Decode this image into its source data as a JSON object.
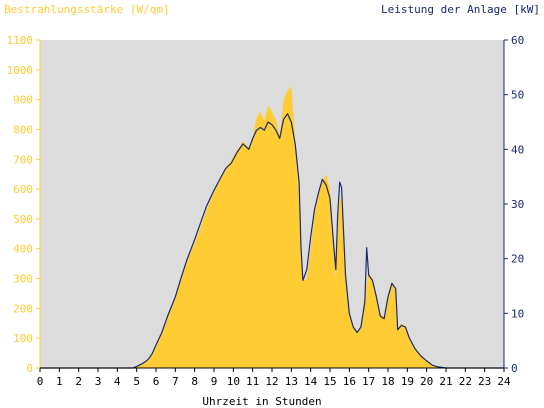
{
  "chart_data": {
    "type": "area",
    "left_title": "Bestrahlungsstärke [W/qm]",
    "right_title": "Leistung der Anlage [kW]",
    "xlabel": "Uhrzeit in Stunden",
    "xlim": [
      0,
      24
    ],
    "ylim_left": [
      0,
      1100
    ],
    "ylim_right": [
      0,
      60
    ],
    "x_ticks": [
      "0",
      "1",
      "2",
      "3",
      "4",
      "5",
      "6",
      "7",
      "8",
      "9",
      "10",
      "11",
      "12",
      "13",
      "14",
      "15",
      "16",
      "17",
      "18",
      "19",
      "20",
      "21",
      "22",
      "23",
      "24"
    ],
    "y_left_ticks": [
      "0",
      "100",
      "200",
      "300",
      "400",
      "500",
      "600",
      "700",
      "800",
      "900",
      "1000",
      "1100"
    ],
    "y_right_ticks": [
      "0",
      "10",
      "20",
      "30",
      "40",
      "50",
      "60"
    ],
    "colors": {
      "plot_background": "#dcdcdc",
      "irradiance_fill": "#ffcc33",
      "power_line": "#1a2a6c",
      "left_axis_text": "#ffcc33",
      "right_axis_text": "#1a2a6c",
      "x_axis_text": "#000000"
    },
    "series": [
      {
        "name": "Bestrahlungsstärke",
        "axis": "left",
        "style": "area",
        "points": [
          [
            0,
            0
          ],
          [
            4.8,
            0
          ],
          [
            5.0,
            5
          ],
          [
            5.3,
            12
          ],
          [
            5.6,
            28
          ],
          [
            5.8,
            45
          ],
          [
            6.0,
            75
          ],
          [
            6.3,
            120
          ],
          [
            6.6,
            180
          ],
          [
            7.0,
            240
          ],
          [
            7.3,
            300
          ],
          [
            7.6,
            360
          ],
          [
            8.0,
            420
          ],
          [
            8.3,
            470
          ],
          [
            8.6,
            530
          ],
          [
            9.0,
            590
          ],
          [
            9.3,
            630
          ],
          [
            9.6,
            670
          ],
          [
            9.9,
            700
          ],
          [
            10.2,
            730
          ],
          [
            10.5,
            760
          ],
          [
            10.8,
            740
          ],
          [
            11.0,
            770
          ],
          [
            11.2,
            840
          ],
          [
            11.4,
            860
          ],
          [
            11.6,
            830
          ],
          [
            11.8,
            880
          ],
          [
            12.0,
            860
          ],
          [
            12.2,
            830
          ],
          [
            12.4,
            780
          ],
          [
            12.6,
            900
          ],
          [
            12.8,
            930
          ],
          [
            13.0,
            945
          ],
          [
            13.2,
            760
          ],
          [
            13.4,
            620
          ],
          [
            13.5,
            400
          ],
          [
            13.6,
            290
          ],
          [
            13.8,
            300
          ],
          [
            14.0,
            400
          ],
          [
            14.2,
            520
          ],
          [
            14.4,
            580
          ],
          [
            14.6,
            630
          ],
          [
            14.8,
            650
          ],
          [
            15.0,
            600
          ],
          [
            15.2,
            400
          ],
          [
            15.3,
            300
          ],
          [
            15.4,
            500
          ],
          [
            15.5,
            560
          ],
          [
            15.6,
            580
          ],
          [
            15.8,
            300
          ],
          [
            16.0,
            180
          ],
          [
            16.2,
            140
          ],
          [
            16.4,
            120
          ],
          [
            16.6,
            140
          ],
          [
            16.8,
            250
          ],
          [
            17.0,
            320
          ],
          [
            17.2,
            300
          ],
          [
            17.4,
            240
          ],
          [
            17.6,
            180
          ],
          [
            17.8,
            170
          ],
          [
            18.0,
            230
          ],
          [
            18.2,
            290
          ],
          [
            18.4,
            270
          ],
          [
            18.5,
            130
          ],
          [
            18.7,
            150
          ],
          [
            18.9,
            140
          ],
          [
            19.1,
            100
          ],
          [
            19.4,
            60
          ],
          [
            19.7,
            40
          ],
          [
            20.0,
            25
          ],
          [
            20.3,
            10
          ],
          [
            20.6,
            3
          ],
          [
            21.0,
            0
          ],
          [
            24,
            0
          ]
        ]
      },
      {
        "name": "Leistung",
        "axis": "right",
        "style": "line",
        "points": [
          [
            0,
            0
          ],
          [
            4.8,
            0
          ],
          [
            5.0,
            0.3
          ],
          [
            5.3,
            0.8
          ],
          [
            5.6,
            1.6
          ],
          [
            5.8,
            2.6
          ],
          [
            6.0,
            4.2
          ],
          [
            6.3,
            6.5
          ],
          [
            6.6,
            9.5
          ],
          [
            7.0,
            13
          ],
          [
            7.3,
            16.5
          ],
          [
            7.6,
            19.8
          ],
          [
            8.0,
            23.5
          ],
          [
            8.3,
            26.5
          ],
          [
            8.6,
            29.5
          ],
          [
            9.0,
            32.5
          ],
          [
            9.3,
            34.5
          ],
          [
            9.6,
            36.5
          ],
          [
            9.9,
            37.5
          ],
          [
            10.2,
            39.5
          ],
          [
            10.5,
            41
          ],
          [
            10.8,
            40
          ],
          [
            11.0,
            42
          ],
          [
            11.2,
            43.5
          ],
          [
            11.4,
            44
          ],
          [
            11.6,
            43.5
          ],
          [
            11.8,
            45
          ],
          [
            12.0,
            44.5
          ],
          [
            12.2,
            43.5
          ],
          [
            12.4,
            42
          ],
          [
            12.6,
            45.5
          ],
          [
            12.8,
            46.5
          ],
          [
            13.0,
            45
          ],
          [
            13.2,
            41
          ],
          [
            13.4,
            34
          ],
          [
            13.5,
            22
          ],
          [
            13.6,
            16
          ],
          [
            13.8,
            18
          ],
          [
            14.0,
            24
          ],
          [
            14.2,
            29
          ],
          [
            14.4,
            32
          ],
          [
            14.6,
            34.5
          ],
          [
            14.8,
            33.5
          ],
          [
            15.0,
            31
          ],
          [
            15.2,
            22
          ],
          [
            15.3,
            18
          ],
          [
            15.4,
            28
          ],
          [
            15.5,
            34
          ],
          [
            15.6,
            33
          ],
          [
            15.8,
            17
          ],
          [
            16.0,
            10
          ],
          [
            16.2,
            7.5
          ],
          [
            16.4,
            6.5
          ],
          [
            16.6,
            7.5
          ],
          [
            16.8,
            12
          ],
          [
            16.9,
            22
          ],
          [
            17.0,
            17
          ],
          [
            17.2,
            16
          ],
          [
            17.4,
            13
          ],
          [
            17.6,
            9.5
          ],
          [
            17.8,
            9
          ],
          [
            18.0,
            13
          ],
          [
            18.2,
            15.5
          ],
          [
            18.4,
            14.5
          ],
          [
            18.5,
            7
          ],
          [
            18.7,
            7.8
          ],
          [
            18.9,
            7.5
          ],
          [
            19.1,
            5.5
          ],
          [
            19.4,
            3.5
          ],
          [
            19.7,
            2.2
          ],
          [
            20.0,
            1.3
          ],
          [
            20.3,
            0.5
          ],
          [
            20.6,
            0.2
          ],
          [
            21.0,
            0
          ],
          [
            24,
            0
          ]
        ]
      }
    ]
  }
}
